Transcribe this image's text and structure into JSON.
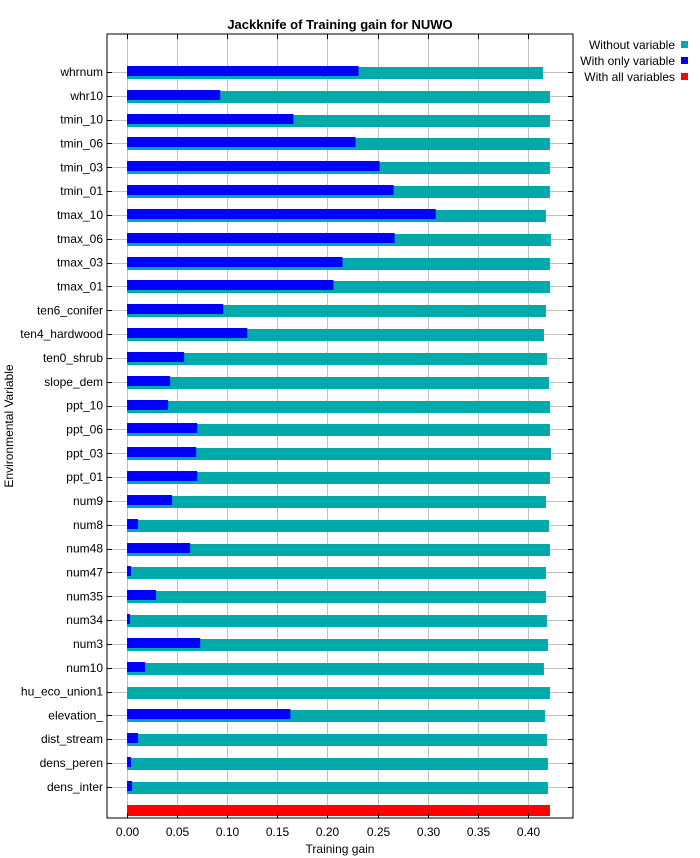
{
  "chart_data": {
    "type": "bar",
    "orientation": "horizontal",
    "title": "Jackknife of Training gain for NUWO",
    "xlabel": "Training gain",
    "ylabel": "Environmental Variable",
    "xlim": [
      -0.02,
      0.445
    ],
    "xticks": [
      "0.00",
      "0.05",
      "0.10",
      "0.15",
      "0.20",
      "0.25",
      "0.30",
      "0.35",
      "0.40"
    ],
    "xtick_values": [
      0.0,
      0.05,
      0.1,
      0.15,
      0.2,
      0.25,
      0.3,
      0.35,
      0.4
    ],
    "grid": true,
    "legend_position": "top-right",
    "categories": [
      "whrnum",
      "whr10",
      "tmin_10",
      "tmin_06",
      "tmin_03",
      "tmin_01",
      "tmax_10",
      "tmax_06",
      "tmax_03",
      "tmax_01",
      "ten6_conifer",
      "ten4_hardwood",
      "ten0_shrub",
      "slope_dem",
      "ppt_10",
      "ppt_06",
      "ppt_03",
      "ppt_01",
      "num9",
      "num8",
      "num48",
      "num47",
      "num35",
      "num34",
      "num3",
      "num10",
      "hu_eco_union1",
      "elevation_",
      "dist_stream",
      "dens_peren",
      "dens_inter"
    ],
    "series": [
      {
        "name": "Without variable",
        "color": "#00aaaa",
        "values": [
          0.415,
          0.422,
          0.422,
          0.422,
          0.422,
          0.422,
          0.418,
          0.423,
          0.422,
          0.422,
          0.418,
          0.416,
          0.419,
          0.421,
          0.422,
          0.422,
          0.423,
          0.422,
          0.418,
          0.421,
          0.422,
          0.418,
          0.418,
          0.419,
          0.42,
          0.416,
          0.422,
          0.417,
          0.419,
          0.42,
          0.42
        ]
      },
      {
        "name": "With only variable",
        "color": "#0000ff",
        "values": [
          0.231,
          0.093,
          0.166,
          0.228,
          0.252,
          0.266,
          0.308,
          0.267,
          0.215,
          0.206,
          0.096,
          0.12,
          0.057,
          0.043,
          0.041,
          0.07,
          0.069,
          0.07,
          0.045,
          0.011,
          0.063,
          0.004,
          0.029,
          0.003,
          0.073,
          0.018,
          0.0,
          0.163,
          0.011,
          0.004,
          0.005
        ]
      },
      {
        "name": "With all variables",
        "color": "#ff0000",
        "values": [
          0.422
        ]
      }
    ]
  }
}
